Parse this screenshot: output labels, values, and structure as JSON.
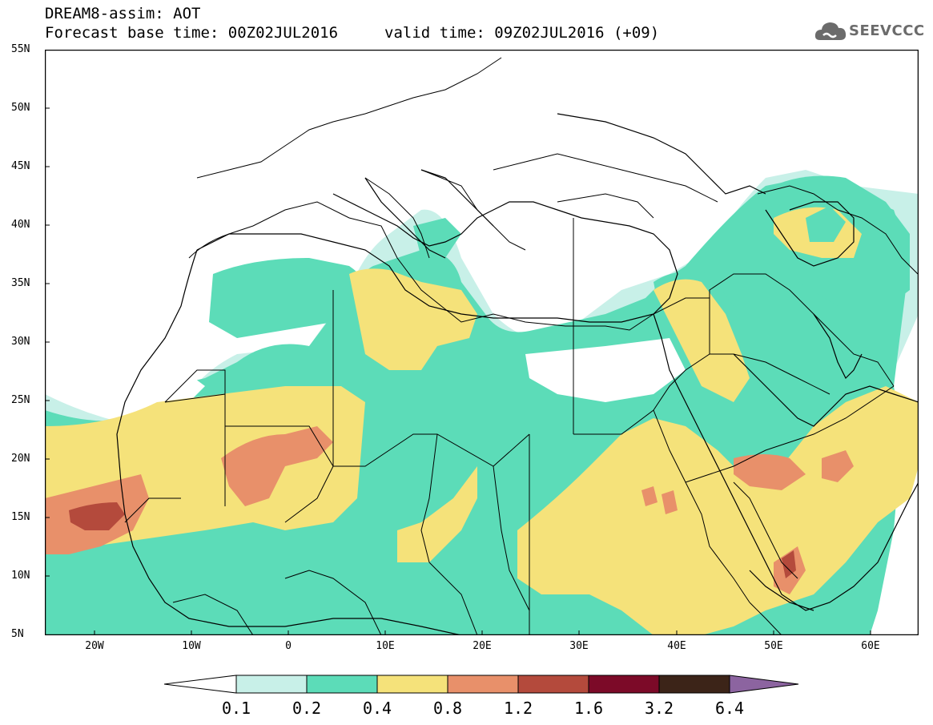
{
  "header": {
    "title_line1": "DREAM8-assim: AOT",
    "title_line2": "Forecast base time: 00Z02JUL2016",
    "valid_time": "valid time: 09Z02JUL2016 (+09)"
  },
  "logo": {
    "text": "SEEVCCC",
    "icon": "cloud-icon"
  },
  "map": {
    "lat_labels": [
      "55N",
      "50N",
      "45N",
      "40N",
      "35N",
      "30N",
      "25N",
      "20N",
      "15N",
      "10N",
      "5N"
    ],
    "lon_labels": [
      "20W",
      "10W",
      "0",
      "10E",
      "20E",
      "30E",
      "40E",
      "50E",
      "60E"
    ],
    "lon_range": [
      -25,
      65
    ],
    "lat_range": [
      5,
      55
    ]
  },
  "colorbar": {
    "labels": [
      "0.1",
      "0.2",
      "0.4",
      "0.8",
      "1.2",
      "1.6",
      "3.2",
      "6.4"
    ],
    "colors": {
      "below": "#ffffff",
      "c1": "#c8f0e8",
      "c2": "#5cdcb8",
      "c3": "#f5e27a",
      "c4": "#e8906a",
      "c5": "#b44a3c",
      "c6": "#7c0a28",
      "c7": "#3c2418",
      "above": "#8c64a0"
    }
  }
}
